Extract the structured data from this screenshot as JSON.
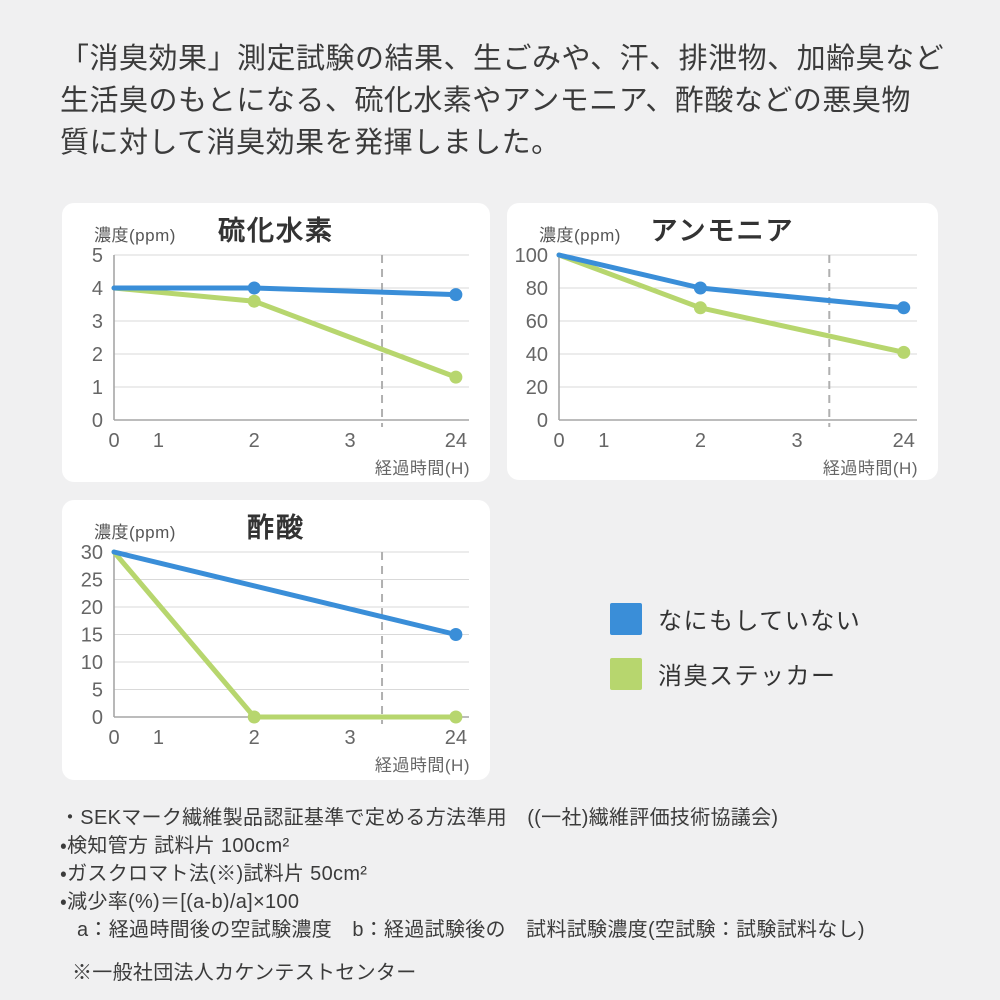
{
  "header": {
    "lines": [
      "「消臭効果」測定試験の結果、生ごみや、汗、排泄物、加齢臭など",
      "生活臭のもとになる、硫化水素やアンモニア、酢酸などの悪臭物",
      "質に対して消臭効果を発揮しました。"
    ]
  },
  "colors": {
    "page_bg": "#f0f0f1",
    "card_bg": "#ffffff",
    "blue": "#3a8ed8",
    "green": "#b7d66e",
    "grid": "#d9d9d9",
    "axis": "#a6a6a6",
    "dash": "#b0b0b0",
    "tick_text": "#666666",
    "title_text": "#333333"
  },
  "legend": {
    "items": [
      {
        "label": "なにもしていない",
        "color_key": "blue"
      },
      {
        "label": "消臭ステッカー",
        "color_key": "green"
      }
    ]
  },
  "chart_data": [
    {
      "type": "line",
      "title": "硫化水素",
      "ylabel": "濃度(ppm)",
      "xlabel": "経過時間(H)",
      "x_categories": [
        "0",
        "1",
        "2",
        "3",
        "24"
      ],
      "yticks": [
        5,
        4,
        3,
        2,
        1,
        0
      ],
      "ylim": [
        0,
        5
      ],
      "grid": true,
      "axis_break_dash": true,
      "series": [
        {
          "name": "なにもしていない",
          "color_key": "blue",
          "points": [
            {
              "x": "0",
              "y": 4.0
            },
            {
              "x": "2",
              "y": 4.0,
              "marker": true
            },
            {
              "x": "24",
              "y": 3.8,
              "marker": true
            }
          ]
        },
        {
          "name": "消臭ステッカー",
          "color_key": "green",
          "points": [
            {
              "x": "0",
              "y": 4.0
            },
            {
              "x": "2",
              "y": 3.6,
              "marker": true
            },
            {
              "x": "24",
              "y": 1.3,
              "marker": true
            }
          ]
        }
      ]
    },
    {
      "type": "line",
      "title": "アンモニア",
      "ylabel": "濃度(ppm)",
      "xlabel": "経過時間(H)",
      "x_categories": [
        "0",
        "1",
        "2",
        "3",
        "24"
      ],
      "yticks": [
        100,
        80,
        60,
        40,
        20,
        0
      ],
      "ylim": [
        0,
        100
      ],
      "grid": true,
      "axis_break_dash": true,
      "series": [
        {
          "name": "なにもしていない",
          "color_key": "blue",
          "points": [
            {
              "x": "0",
              "y": 100
            },
            {
              "x": "2",
              "y": 80,
              "marker": true
            },
            {
              "x": "24",
              "y": 68,
              "marker": true
            }
          ]
        },
        {
          "name": "消臭ステッカー",
          "color_key": "green",
          "points": [
            {
              "x": "0",
              "y": 100
            },
            {
              "x": "2",
              "y": 68,
              "marker": true
            },
            {
              "x": "24",
              "y": 41,
              "marker": true
            }
          ]
        }
      ]
    },
    {
      "type": "line",
      "title": "酢酸",
      "ylabel": "濃度(ppm)",
      "xlabel": "経過時間(H)",
      "x_categories": [
        "0",
        "1",
        "2",
        "3",
        "24"
      ],
      "yticks": [
        30,
        25,
        20,
        15,
        10,
        5,
        0
      ],
      "ylim": [
        0,
        30
      ],
      "grid": true,
      "axis_break_dash": true,
      "series": [
        {
          "name": "なにもしていない",
          "color_key": "blue",
          "points": [
            {
              "x": "0",
              "y": 30
            },
            {
              "x": "24",
              "y": 15,
              "marker": true
            }
          ]
        },
        {
          "name": "消臭ステッカー",
          "color_key": "green",
          "points": [
            {
              "x": "0",
              "y": 30
            },
            {
              "x": "2",
              "y": 0,
              "marker": true
            },
            {
              "x": "24",
              "y": 0,
              "marker": true
            }
          ]
        }
      ]
    }
  ],
  "footnotes": {
    "lines": [
      "・SEKマーク繊維製品認証基準で定める方法準用　((一社)繊維評価技術協議会)",
      "・検知管方 試料片 100cm²",
      "・ガスクロマト法(※)試料片 50cm²",
      "・減少率(%)＝[(a-b)/a]×100",
      "a：経過時間後の空試験濃度　b：経過試験後の　試料試験濃度(空試験：試験試料なし)"
    ],
    "source": "※一般社団法人カケンテストセンター"
  }
}
